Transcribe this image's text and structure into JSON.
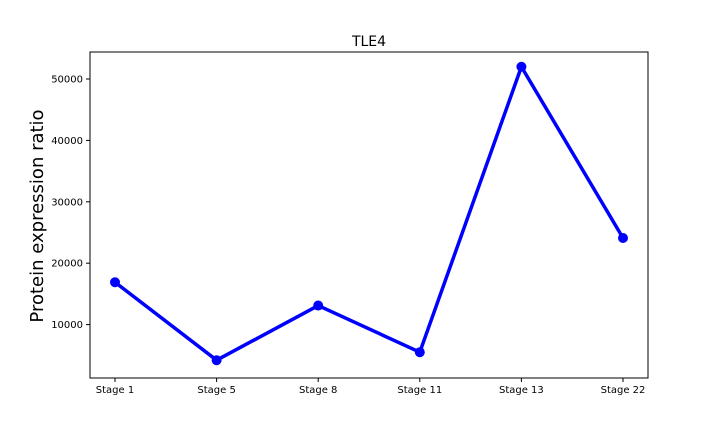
{
  "chart_data": {
    "type": "line",
    "title": "TLE4",
    "xlabel": "",
    "ylabel": "Protein expression ratio",
    "categories": [
      "Stage 1",
      "Stage 5",
      "Stage 8",
      "Stage 11",
      "Stage 13",
      "Stage 22"
    ],
    "series": [
      {
        "values": [
          16900,
          4200,
          13100,
          5500,
          52000,
          24100
        ]
      }
    ],
    "ylim": [
      1300,
      54400
    ],
    "yticks": [
      10000,
      20000,
      30000,
      40000,
      50000
    ],
    "ytick_labels": [
      "10000",
      "20000",
      "30000",
      "40000",
      "50000"
    ],
    "grid": false,
    "legend": "none",
    "colors": {
      "series": "#0000ff",
      "axes": "#000000",
      "background": "#ffffff"
    }
  }
}
